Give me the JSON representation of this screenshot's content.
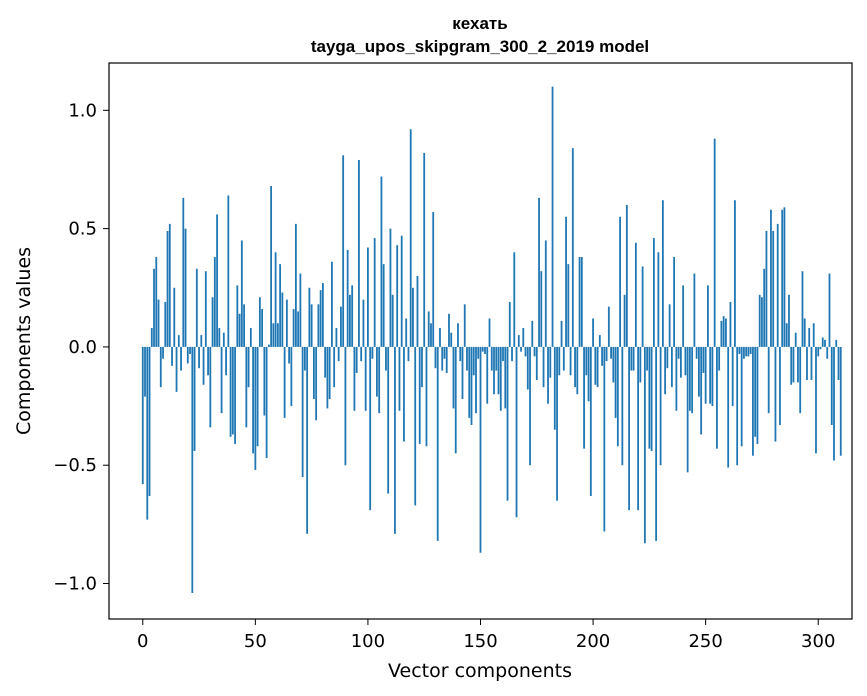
{
  "chart_data": {
    "type": "bar",
    "title": "кехать",
    "subtitle": "tayga_upos_skipgram_300_2_2019 model",
    "xlabel": "Vector components",
    "ylabel": "Components values",
    "xlim": [
      -15,
      315
    ],
    "ylim": [
      -1.15,
      1.2
    ],
    "xticks": [
      0,
      50,
      100,
      150,
      200,
      250,
      300
    ],
    "xtick_labels": [
      "0",
      "50",
      "100",
      "150",
      "200",
      "250",
      "300"
    ],
    "yticks": [
      1.0,
      0.5,
      0.0,
      -0.5,
      -1.0
    ],
    "ytick_labels": [
      "1.0",
      "0.5",
      "0.0",
      "−0.5",
      "−1.0"
    ],
    "grid": false,
    "bar_color": "#1f77b4",
    "series": [
      {
        "values": [
          -0.58,
          -0.21,
          -0.73,
          -0.63,
          0.08,
          0.33,
          0.38,
          0.2,
          -0.17,
          -0.05,
          0.19,
          0.49,
          0.52,
          -0.08,
          0.25,
          -0.19,
          0.05,
          -0.1,
          0.63,
          0.5,
          -0.07,
          -0.03,
          -1.04,
          -0.44,
          0.33,
          -0.09,
          0.05,
          -0.16,
          0.32,
          -0.12,
          -0.34,
          0.21,
          0.38,
          0.56,
          0.08,
          -0.28,
          0.06,
          -0.12,
          0.64,
          -0.38,
          -0.37,
          -0.41,
          0.26,
          0.14,
          0.45,
          0.18,
          -0.34,
          -0.17,
          0.08,
          -0.45,
          -0.52,
          -0.42,
          0.21,
          0.16,
          -0.29,
          -0.47,
          0.01,
          0.68,
          0.1,
          0.4,
          0.1,
          0.35,
          0.23,
          -0.3,
          0.2,
          -0.07,
          -0.25,
          0.16,
          0.52,
          0.15,
          0.31,
          -0.55,
          -0.1,
          -0.79,
          0.25,
          0.18,
          -0.22,
          -0.31,
          0.18,
          0.24,
          0.27,
          -0.13,
          -0.26,
          -0.22,
          0.36,
          -0.17,
          0.08,
          -0.06,
          0.17,
          0.81,
          -0.5,
          0.41,
          0.22,
          0.26,
          -0.27,
          -0.11,
          0.79,
          -0.06,
          0.2,
          -0.27,
          0.42,
          -0.69,
          -0.05,
          0.46,
          -0.21,
          -0.28,
          0.72,
          0.35,
          -0.1,
          -0.62,
          0.5,
          0.22,
          -0.79,
          0.43,
          -0.27,
          0.47,
          -0.4,
          0.12,
          -0.06,
          0.92,
          0.25,
          -0.67,
          0.3,
          -0.41,
          -0.17,
          0.82,
          -0.42,
          0.15,
          0.1,
          0.57,
          -0.09,
          -0.82,
          0.08,
          -0.1,
          -0.05,
          -0.11,
          0.14,
          0.06,
          -0.26,
          -0.45,
          0.1,
          -0.06,
          -0.22,
          0.18,
          -0.1,
          -0.3,
          -0.33,
          -0.12,
          -0.28,
          -0.05,
          -0.87,
          -0.02,
          -0.03,
          -0.24,
          0.12,
          -0.1,
          -0.2,
          -0.1,
          -0.2,
          -0.27,
          -0.06,
          -0.26,
          -0.65,
          0.19,
          -0.06,
          0.4,
          -0.72,
          0.05,
          -0.02,
          0.08,
          -0.04,
          -0.18,
          -0.5,
          0.11,
          -0.04,
          -0.14,
          0.63,
          0.32,
          -0.17,
          0.45,
          -0.24,
          -0.13,
          1.1,
          -0.35,
          -0.65,
          -0.12,
          0.11,
          -0.1,
          0.55,
          0.35,
          -0.12,
          0.84,
          -0.17,
          -0.2,
          0.38,
          0.38,
          -0.43,
          -0.12,
          -0.23,
          -0.63,
          0.12,
          -0.16,
          -0.17,
          0.05,
          -0.08,
          -0.78,
          -0.06,
          0.17,
          -0.05,
          -0.15,
          -0.3,
          -0.42,
          0.55,
          -0.5,
          0.22,
          0.6,
          -0.69,
          -0.1,
          -0.1,
          0.44,
          -0.69,
          -0.15,
          0.34,
          -0.83,
          -0.1,
          -0.43,
          -0.44,
          0.46,
          -0.82,
          0.4,
          -0.5,
          0.62,
          -0.2,
          -0.09,
          0.18,
          -0.17,
          0.38,
          -0.27,
          -0.05,
          -0.13,
          0.26,
          -0.12,
          -0.53,
          -0.27,
          -0.28,
          0.31,
          -0.05,
          -0.21,
          -0.37,
          -0.11,
          -0.24,
          0.26,
          -0.24,
          -0.25,
          0.88,
          -0.43,
          -0.1,
          0.11,
          0.13,
          0.12,
          -0.51,
          0.19,
          -0.25,
          0.62,
          -0.5,
          -0.03,
          -0.42,
          -0.05,
          -0.04,
          -0.04,
          -0.03,
          -0.46,
          -0.38,
          -0.41,
          0.22,
          0.21,
          0.33,
          0.49,
          -0.28,
          0.58,
          0.49,
          -0.4,
          0.52,
          -0.33,
          0.58,
          0.59,
          0.1,
          0.22,
          -0.16,
          -0.15,
          0.06,
          -0.15,
          -0.28,
          0.32,
          0.12,
          -0.14,
          0.08,
          -0.14,
          0.1,
          -0.45,
          -0.04,
          -0.01,
          0.04,
          0.03,
          -0.05,
          0.31,
          -0.33,
          -0.48,
          0.03,
          -0.14,
          -0.46
        ]
      }
    ]
  }
}
